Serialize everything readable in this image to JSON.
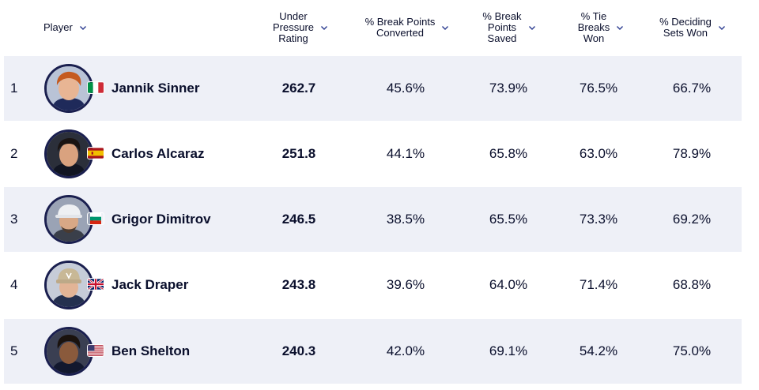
{
  "header": {
    "player": "Player",
    "under_pressure": "Under\nPressure\nRating",
    "break_converted": "% Break Points\nConverted",
    "break_saved": "% Break\nPoints\nSaved",
    "tie_breaks": "% Tie\nBreaks\nWon",
    "deciding_sets": "% Deciding\nSets Won"
  },
  "rows": [
    {
      "rank": "1",
      "name": "Jannik Sinner",
      "flag": "italy-flag-icon",
      "rating": "262.7",
      "converted": "45.6%",
      "saved": "73.9%",
      "tiebreaks": "76.5%",
      "deciding": "66.7%"
    },
    {
      "rank": "2",
      "name": "Carlos Alcaraz",
      "flag": "spain-flag-icon",
      "rating": "251.8",
      "converted": "44.1%",
      "saved": "65.8%",
      "tiebreaks": "63.0%",
      "deciding": "78.9%"
    },
    {
      "rank": "3",
      "name": "Grigor Dimitrov",
      "flag": "bulgaria-flag-icon",
      "rating": "246.5",
      "converted": "38.5%",
      "saved": "65.5%",
      "tiebreaks": "73.3%",
      "deciding": "69.2%"
    },
    {
      "rank": "4",
      "name": "Jack Draper",
      "flag": "uk-flag-icon",
      "rating": "243.8",
      "converted": "39.6%",
      "saved": "64.0%",
      "tiebreaks": "71.4%",
      "deciding": "68.8%"
    },
    {
      "rank": "5",
      "name": "Ben Shelton",
      "flag": "usa-flag-icon",
      "rating": "240.3",
      "converted": "42.0%",
      "saved": "69.1%",
      "tiebreaks": "54.2%",
      "deciding": "75.0%"
    }
  ],
  "colors": {
    "text": "#0a0f2c",
    "row_shade": "#eef0f7",
    "avatar_ring": "#1a1f4f",
    "chevron": "#2a3a8f"
  }
}
